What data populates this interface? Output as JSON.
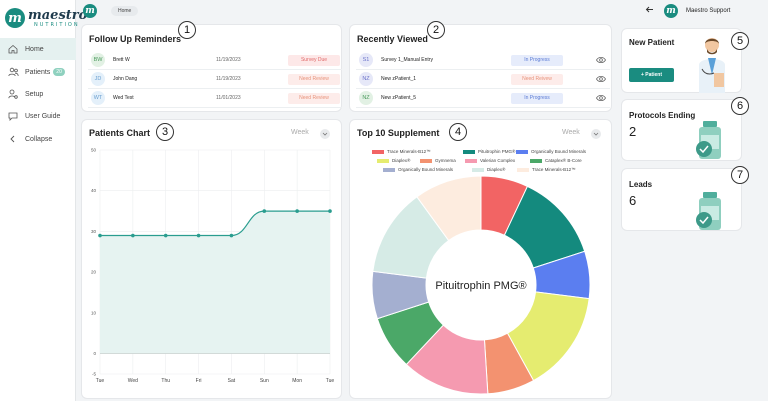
{
  "app": {
    "logo_word": "maestro",
    "logo_sub": "NUTRITION",
    "logo_letter": "m"
  },
  "sidebar": {
    "items": [
      {
        "label": "Home",
        "icon": "home-icon",
        "active": true
      },
      {
        "label": "Patients",
        "icon": "patients-icon",
        "badge": "20"
      },
      {
        "label": "Setup",
        "icon": "setup-icon"
      },
      {
        "label": "User Guide",
        "icon": "chat-icon"
      },
      {
        "label": "Collapse",
        "icon": "chevron-left-icon"
      }
    ]
  },
  "header": {
    "breadcrumb": "Home",
    "user": "Maestro Support",
    "avatar_letter": "m",
    "back_icon": "arrow-left-icon"
  },
  "badges": [
    "1",
    "2",
    "3",
    "4",
    "5",
    "6",
    "7"
  ],
  "follow_up": {
    "title": "Follow Up Reminders",
    "rows": [
      {
        "initials": "BW",
        "name": "Brett W",
        "date": "11/19/2023",
        "status": "Survey Due"
      },
      {
        "initials": "JD",
        "name": "John Dang",
        "date": "11/19/2023",
        "status": "Need Review"
      },
      {
        "initials": "WT",
        "name": "Wed Test",
        "date": "11/01/2023",
        "status": "Need Review"
      }
    ]
  },
  "recently_viewed": {
    "title": "Recently Viewed",
    "rows": [
      {
        "initials": "S1",
        "name": "Survey 1_Manual Entry",
        "status": "In Progress"
      },
      {
        "initials": "NZ",
        "name": "New zPatient_1",
        "status": "Need Reivew"
      },
      {
        "initials": "NZ",
        "name": "New zPatient_5",
        "status": "In Progress"
      }
    ]
  },
  "patients_chart": {
    "title": "Patients Chart",
    "period": "Week"
  },
  "supplements": {
    "title": "Top 10 Supplement",
    "period": "Week",
    "center_label": "Pituitrophin PMG®"
  },
  "new_patient": {
    "title": "New Patient",
    "button": "+ Patient"
  },
  "protocols": {
    "title": "Protocols Ending",
    "value": "2"
  },
  "leads": {
    "title": "Leads",
    "value": "6"
  },
  "colors": {
    "brand": "#1a8c80",
    "line": "#2a9d8f",
    "fill": "#e6f3f1"
  },
  "chart_data": [
    {
      "type": "line",
      "title": "Patients Chart",
      "categories": [
        "Tue",
        "Wed",
        "Thu",
        "Fri",
        "Sat",
        "Sun",
        "Mon",
        "Tue"
      ],
      "values": [
        29,
        29,
        29,
        29,
        29,
        35,
        35,
        35
      ],
      "ylim": [
        -5,
        50
      ],
      "yticks": [
        -5,
        0,
        10,
        20,
        30,
        40,
        50
      ],
      "grid": true
    },
    {
      "type": "pie",
      "title": "Top 10 Supplement",
      "labels": [
        "Trace Minerals-B12™",
        "Pituitrophin PMG®",
        "Organically Bound Minerals",
        "Diaplex®",
        "Gymnema",
        "Valerian Complex",
        "Cataplex® B-Core",
        "Organically Bound Minerals",
        "Diaplex®",
        "Trace Minerals-B12™"
      ],
      "values": [
        7,
        13,
        7,
        15,
        7,
        13,
        8,
        7,
        13,
        10
      ],
      "colors": [
        "#f26464",
        "#148a7e",
        "#5b7ef0",
        "#e5ec70",
        "#f39270",
        "#f59ab0",
        "#4ba868",
        "#a4afd0",
        "#d6ebe6",
        "#fdecdf"
      ],
      "legend": "top"
    }
  ]
}
